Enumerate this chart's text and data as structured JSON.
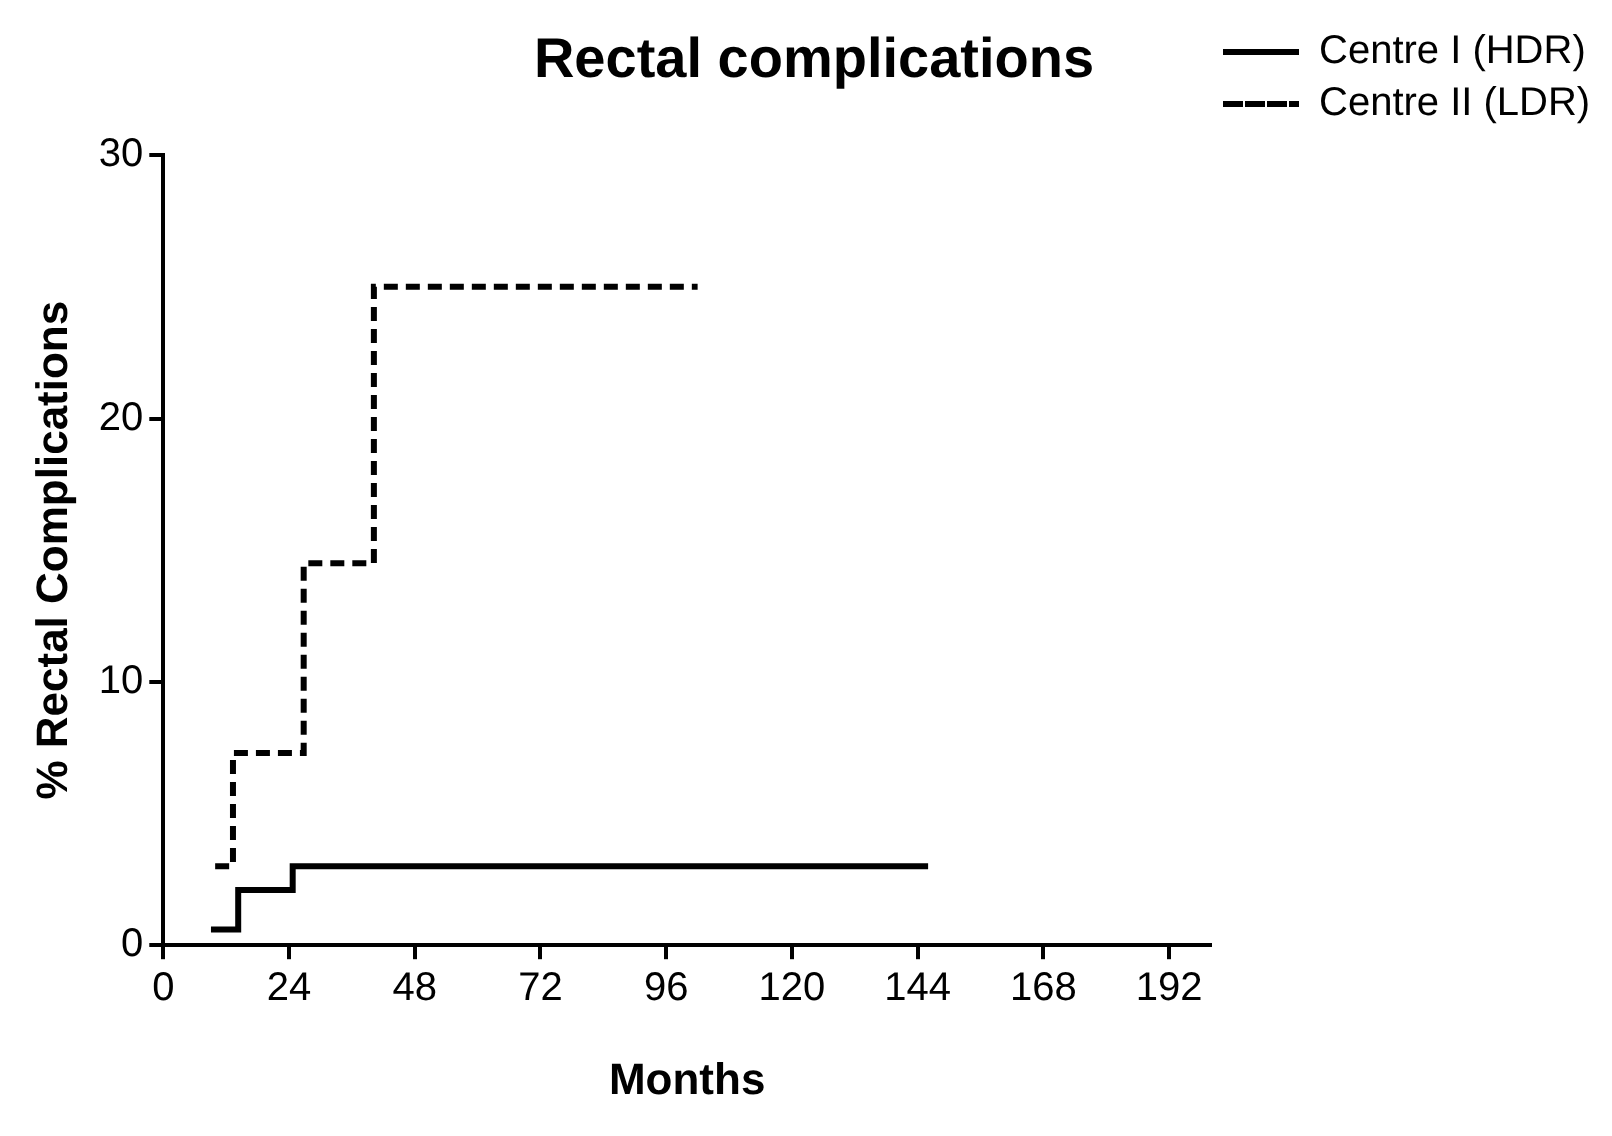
{
  "chart_data": {
    "type": "step",
    "title": "Rectal complications",
    "xlabel": "Months",
    "ylabel": "% Rectal Complications",
    "xlim": [
      0,
      200
    ],
    "xticks": [
      0,
      24,
      48,
      72,
      96,
      120,
      144,
      168,
      192
    ],
    "ylim": [
      0,
      30
    ],
    "yticks": [
      0,
      10,
      20,
      30
    ],
    "grid": false,
    "legend": "top right",
    "marker": "none",
    "series": [
      {
        "name": "Centre I (HDR)",
        "color": "#000000",
        "line_style": "solid",
        "x": [
          9.1,
          14.3,
          24.7,
          146
        ],
        "values": [
          0.6,
          2.1,
          3.0,
          3.0
        ]
      },
      {
        "name": "Centre II (LDR)",
        "color": "#000000",
        "line_style": "dashed",
        "x": [
          9.9,
          13.3,
          26.8,
          40.2,
          102
        ],
        "values": [
          3.0,
          7.3,
          14.5,
          25.0,
          25.0
        ]
      }
    ]
  }
}
